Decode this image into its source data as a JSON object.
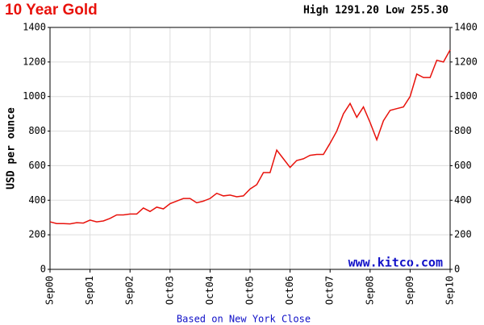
{
  "chart_data": {
    "type": "line",
    "title": "10 Year Gold",
    "subtitle": "High 1291.20 Low 255.30",
    "y_label": "USD per ounce",
    "source": "www.kitco.com",
    "note": "Based on New York Close",
    "color": "#e8120c",
    "grid": true,
    "ylim": [
      0,
      1400
    ],
    "yticks": [
      0,
      200,
      400,
      600,
      800,
      1000,
      1200,
      1400
    ],
    "xticks": [
      "Sep00",
      "Sep01",
      "Sep02",
      "Oct03",
      "Oct04",
      "Oct05",
      "Oct06",
      "Oct07",
      "Sep08",
      "Sep09",
      "Sep10"
    ],
    "values": [
      275,
      265,
      265,
      263,
      270,
      268,
      285,
      275,
      280,
      295,
      315,
      315,
      320,
      320,
      355,
      335,
      360,
      350,
      380,
      395,
      410,
      410,
      385,
      395,
      410,
      440,
      425,
      430,
      420,
      425,
      465,
      490,
      560,
      560,
      690,
      640,
      590,
      630,
      640,
      660,
      665,
      665,
      730,
      800,
      900,
      960,
      880,
      940,
      850,
      750,
      860,
      920,
      930,
      940,
      1000,
      1130,
      1110,
      1110,
      1210,
      1200,
      1270
    ]
  }
}
